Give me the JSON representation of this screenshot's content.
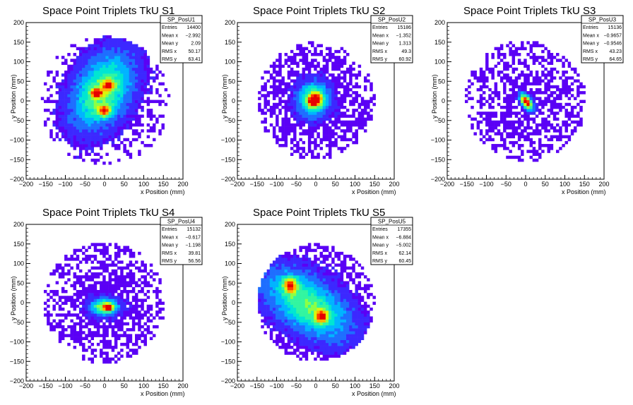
{
  "palette": [
    "#5a00f5",
    "#3c28ff",
    "#1e6eff",
    "#00b4ff",
    "#00e6d2",
    "#32f5a0",
    "#8cff46",
    "#dcf50a",
    "#ffb400",
    "#ff3c00",
    "#e60000"
  ],
  "chart_data": [
    {
      "type": "heatmap",
      "title": "Space Point Triplets TkU S1",
      "xlabel": "x Position (mm)",
      "ylabel": "y Position (mm)",
      "xlim": [
        -200,
        200
      ],
      "ylim": [
        -200,
        200
      ],
      "xticks": [
        -200,
        -150,
        -100,
        -50,
        0,
        50,
        100,
        150,
        200
      ],
      "yticks": [
        -200,
        -150,
        -100,
        -50,
        0,
        50,
        100,
        150,
        200
      ],
      "tick_labels": [
        "−200",
        "−150",
        "−100",
        "−50",
        "0",
        "50",
        "100",
        "150",
        "200"
      ],
      "grid": false,
      "stats_box": {
        "name": "SP_PosU1",
        "rows": [
          {
            "label": "Entries",
            "value": "14400"
          },
          {
            "label": "Mean x",
            "value": "−2.992"
          },
          {
            "label": "Mean y",
            "value": "2.09"
          },
          {
            "label": "RMS x",
            "value": "50.17"
          },
          {
            "label": "RMS y",
            "value": "63.41"
          }
        ]
      },
      "distribution": {
        "outline": {
          "center": [
            0,
            0
          ],
          "radius": 165,
          "density": 0.55
        },
        "blobs": [
          {
            "center": [
              -5,
              25
            ],
            "sigma": [
              45,
              70
            ],
            "rotation_deg": -30,
            "peak": 0.55
          },
          {
            "center": [
              -20,
              20
            ],
            "sigma": [
              10,
              8
            ],
            "peak": 0.6
          },
          {
            "center": [
              0,
              -25
            ],
            "sigma": [
              12,
              10
            ],
            "peak": 0.55
          },
          {
            "center": [
              10,
              40
            ],
            "sigma": [
              10,
              10
            ],
            "peak": 0.45
          }
        ]
      }
    },
    {
      "type": "heatmap",
      "title": "Space Point Triplets TkU S2",
      "xlabel": "x Position (mm)",
      "ylabel": "y Position (mm)",
      "xlim": [
        -200,
        200
      ],
      "ylim": [
        -200,
        200
      ],
      "xticks": [
        -200,
        -150,
        -100,
        -50,
        0,
        50,
        100,
        150,
        200
      ],
      "yticks": [
        -200,
        -150,
        -100,
        -50,
        0,
        50,
        100,
        150,
        200
      ],
      "tick_labels": [
        "−200",
        "−150",
        "−100",
        "−50",
        "0",
        "50",
        "100",
        "150",
        "200"
      ],
      "grid": false,
      "stats_box": {
        "name": "SP_PosU2",
        "rows": [
          {
            "label": "Entries",
            "value": "15186"
          },
          {
            "label": "Mean x",
            "value": "−1.352"
          },
          {
            "label": "Mean y",
            "value": "1.313"
          },
          {
            "label": "RMS x",
            "value": "49.3"
          },
          {
            "label": "RMS y",
            "value": "60.92"
          }
        ]
      },
      "distribution": {
        "outline": {
          "center": [
            0,
            0
          ],
          "radius": 150,
          "density": 0.9
        },
        "blobs": [
          {
            "center": [
              -5,
              5
            ],
            "sigma": [
              28,
              30
            ],
            "peak": 0.55
          },
          {
            "center": [
              -10,
              0
            ],
            "sigma": [
              8,
              10
            ],
            "peak": 0.55
          },
          {
            "center": [
              5,
              5
            ],
            "sigma": [
              8,
              12
            ],
            "peak": 0.45
          }
        ]
      }
    },
    {
      "type": "heatmap",
      "title": "Space Point Triplets TkU S3",
      "xlabel": "x Position (mm)",
      "ylabel": "y Position (mm)",
      "xlim": [
        -200,
        200
      ],
      "ylim": [
        -200,
        200
      ],
      "xticks": [
        -200,
        -150,
        -100,
        -50,
        0,
        50,
        100,
        150,
        200
      ],
      "yticks": [
        -200,
        -150,
        -100,
        -50,
        0,
        50,
        100,
        150,
        200
      ],
      "tick_labels": [
        "−200",
        "−150",
        "−100",
        "−50",
        "0",
        "50",
        "100",
        "150",
        "200"
      ],
      "grid": false,
      "stats_box": {
        "name": "SP_PosU3",
        "rows": [
          {
            "label": "Entries",
            "value": "15136"
          },
          {
            "label": "Mean x",
            "value": "−0.9657"
          },
          {
            "label": "Mean y",
            "value": "−0.9546"
          },
          {
            "label": "RMS x",
            "value": "43.23"
          },
          {
            "label": "RMS y",
            "value": "64.65"
          }
        ]
      },
      "distribution": {
        "outline": {
          "center": [
            0,
            0
          ],
          "radius": 155,
          "density": 0.7
        },
        "blobs": [
          {
            "center": [
              2,
              -2
            ],
            "sigma": [
              8,
              16
            ],
            "rotation_deg": 35,
            "peak": 0.95
          }
        ]
      }
    },
    {
      "type": "heatmap",
      "title": "Space Point Triplets TkU S4",
      "xlabel": "x Position (mm)",
      "ylabel": "y Position (mm)",
      "xlim": [
        -200,
        200
      ],
      "ylim": [
        -200,
        200
      ],
      "xticks": [
        -200,
        -150,
        -100,
        -50,
        0,
        50,
        100,
        150,
        200
      ],
      "yticks": [
        -200,
        -150,
        -100,
        -50,
        0,
        50,
        100,
        150,
        200
      ],
      "tick_labels": [
        "−200",
        "−150",
        "−100",
        "−50",
        "0",
        "50",
        "100",
        "150",
        "200"
      ],
      "grid": false,
      "stats_box": {
        "name": "SP_PosU4",
        "rows": [
          {
            "label": "Entries",
            "value": "15132"
          },
          {
            "label": "Mean x",
            "value": "−0.617"
          },
          {
            "label": "Mean y",
            "value": "−1.198"
          },
          {
            "label": "RMS x",
            "value": "39.81"
          },
          {
            "label": "RMS y",
            "value": "56.56"
          }
        ]
      },
      "distribution": {
        "outline": {
          "center": [
            0,
            0
          ],
          "radius": 155,
          "density": 0.8
        },
        "blobs": [
          {
            "center": [
              0,
              -10
            ],
            "sigma": [
              25,
              15
            ],
            "peak": 0.6
          },
          {
            "center": [
              10,
              -12
            ],
            "sigma": [
              8,
              6
            ],
            "peak": 0.6
          }
        ]
      }
    },
    {
      "type": "heatmap",
      "title": "Space Point Triplets TkU S5",
      "xlabel": "x Position (mm)",
      "ylabel": "y Position (mm)",
      "xlim": [
        -200,
        200
      ],
      "ylim": [
        -200,
        200
      ],
      "xticks": [
        -200,
        -150,
        -100,
        -50,
        0,
        50,
        100,
        150,
        200
      ],
      "yticks": [
        -200,
        -150,
        -100,
        -50,
        0,
        50,
        100,
        150,
        200
      ],
      "tick_labels": [
        "−200",
        "−150",
        "−100",
        "−50",
        "0",
        "50",
        "100",
        "150",
        "200"
      ],
      "grid": false,
      "stats_box": {
        "name": "SP_PosU5",
        "rows": [
          {
            "label": "Entries",
            "value": "17355"
          },
          {
            "label": "Mean x",
            "value": "−6.884"
          },
          {
            "label": "Mean y",
            "value": "−5.002"
          },
          {
            "label": "RMS x",
            "value": "62.14"
          },
          {
            "label": "RMS y",
            "value": "60.45"
          }
        ]
      },
      "distribution": {
        "outline": {
          "center": [
            0,
            0
          ],
          "radius": 150,
          "density": 0.95
        },
        "blobs": [
          {
            "center": [
              -20,
              -5
            ],
            "sigma": [
              85,
              45
            ],
            "rotation_deg": -35,
            "peak": 0.5
          },
          {
            "center": [
              -65,
              45
            ],
            "sigma": [
              12,
              14
            ],
            "peak": 0.6
          },
          {
            "center": [
              15,
              -35
            ],
            "sigma": [
              12,
              12
            ],
            "peak": 0.55
          }
        ]
      }
    }
  ]
}
